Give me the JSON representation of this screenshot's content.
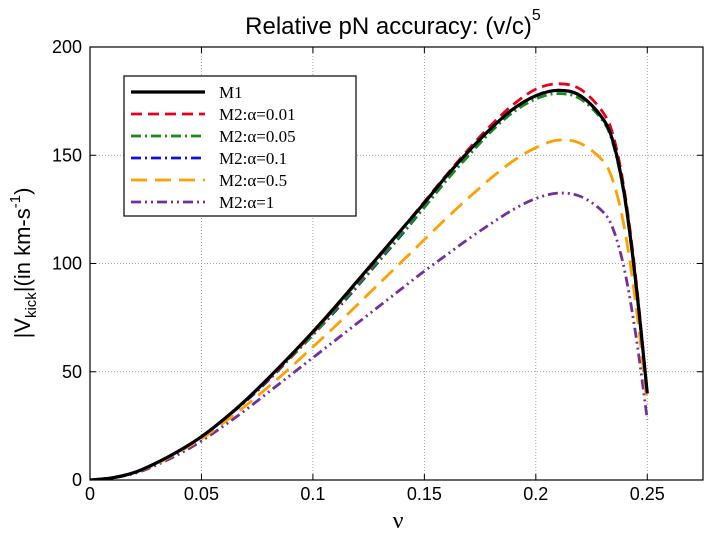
{
  "chart_data": {
    "type": "line",
    "title": {
      "main": "Relative pN accuracy: (v/c)",
      "superscript": "5"
    },
    "xlabel": "ν",
    "ylabel": {
      "part1": "|V",
      "sub": "kick",
      "part2": "|(in km-s",
      "sup": "-1",
      "part3": ")"
    },
    "xlim": [
      0,
      0.275
    ],
    "ylim": [
      0,
      200
    ],
    "grid": true,
    "xticks": [
      0,
      0.05,
      0.1,
      0.15,
      0.2,
      0.25
    ],
    "xtick_labels": [
      "0",
      "0.05",
      "0.1",
      "0.15",
      "0.2",
      "0.25"
    ],
    "yticks": [
      0,
      50,
      100,
      150,
      200
    ],
    "ytick_labels": [
      "0",
      "50",
      "100",
      "150",
      "200"
    ],
    "legend_position": "top-left",
    "x": [
      0,
      0.01,
      0.02,
      0.03,
      0.04,
      0.05,
      0.06,
      0.07,
      0.08,
      0.09,
      0.1,
      0.11,
      0.12,
      0.13,
      0.14,
      0.15,
      0.16,
      0.17,
      0.18,
      0.19,
      0.2,
      0.21,
      0.22,
      0.23,
      0.235,
      0.24,
      0.245,
      0.25
    ],
    "series": [
      {
        "name": "M1",
        "color": "#000000",
        "dash": "solid",
        "values": [
          0,
          1,
          3.5,
          8,
          13.5,
          20,
          28,
          37,
          47,
          57.5,
          68.5,
          80,
          92,
          104,
          116,
          128,
          140.5,
          152,
          162.5,
          171.5,
          177.5,
          180,
          177.5,
          167,
          155,
          130,
          90,
          40
        ]
      },
      {
        "name": "M2:α=0.01",
        "color": "#e8001c",
        "dash": "dashed",
        "values": [
          0,
          1,
          3.5,
          8,
          13.5,
          20,
          28,
          37,
          46.5,
          57,
          68,
          79.5,
          91.5,
          103.5,
          116,
          128.5,
          141,
          153,
          164,
          173.5,
          180.5,
          183,
          180.5,
          170,
          158,
          132,
          92,
          40
        ]
      },
      {
        "name": "M2:α=0.05",
        "color": "#1a8a1a",
        "dash": "dashdot",
        "values": [
          0,
          1,
          3.5,
          8,
          13.5,
          20,
          28,
          37,
          46.5,
          56.5,
          67,
          78.5,
          90,
          102,
          114,
          126,
          138.5,
          150,
          161,
          170,
          176,
          178.5,
          176,
          166,
          154,
          129,
          89,
          40
        ]
      },
      {
        "name": "M2:α=0.1",
        "color": "#1010e0",
        "dash": "dashdot",
        "values": [
          0,
          1,
          3.5,
          8,
          13.5,
          20,
          28,
          36.5,
          46,
          56.5,
          67,
          78,
          89.5,
          101.5,
          113.5,
          126,
          138.5,
          150.5,
          161.5,
          171,
          177.5,
          180,
          177.5,
          167,
          155,
          130,
          90,
          40
        ]
      },
      {
        "name": "M2:α=0.5",
        "color": "#ffa000",
        "dash": "longdash",
        "values": [
          0,
          1,
          3.5,
          7.5,
          13,
          19,
          26.5,
          34.5,
          43,
          52,
          61.5,
          71,
          81,
          91,
          101,
          111,
          121,
          130.5,
          139.5,
          147.5,
          153.5,
          157,
          155.5,
          147.5,
          137,
          115,
          80,
          35
        ]
      },
      {
        "name": "M2:α=1",
        "color": "#7030a0",
        "dash": "dashdotdot",
        "values": [
          0,
          1,
          3,
          7,
          12,
          18,
          25,
          32.5,
          40.5,
          48.5,
          56.5,
          64.5,
          72.5,
          80.5,
          88.5,
          96.5,
          104,
          111.5,
          118.5,
          125,
          130,
          132.5,
          131,
          124,
          115,
          96,
          66,
          28
        ]
      }
    ]
  }
}
